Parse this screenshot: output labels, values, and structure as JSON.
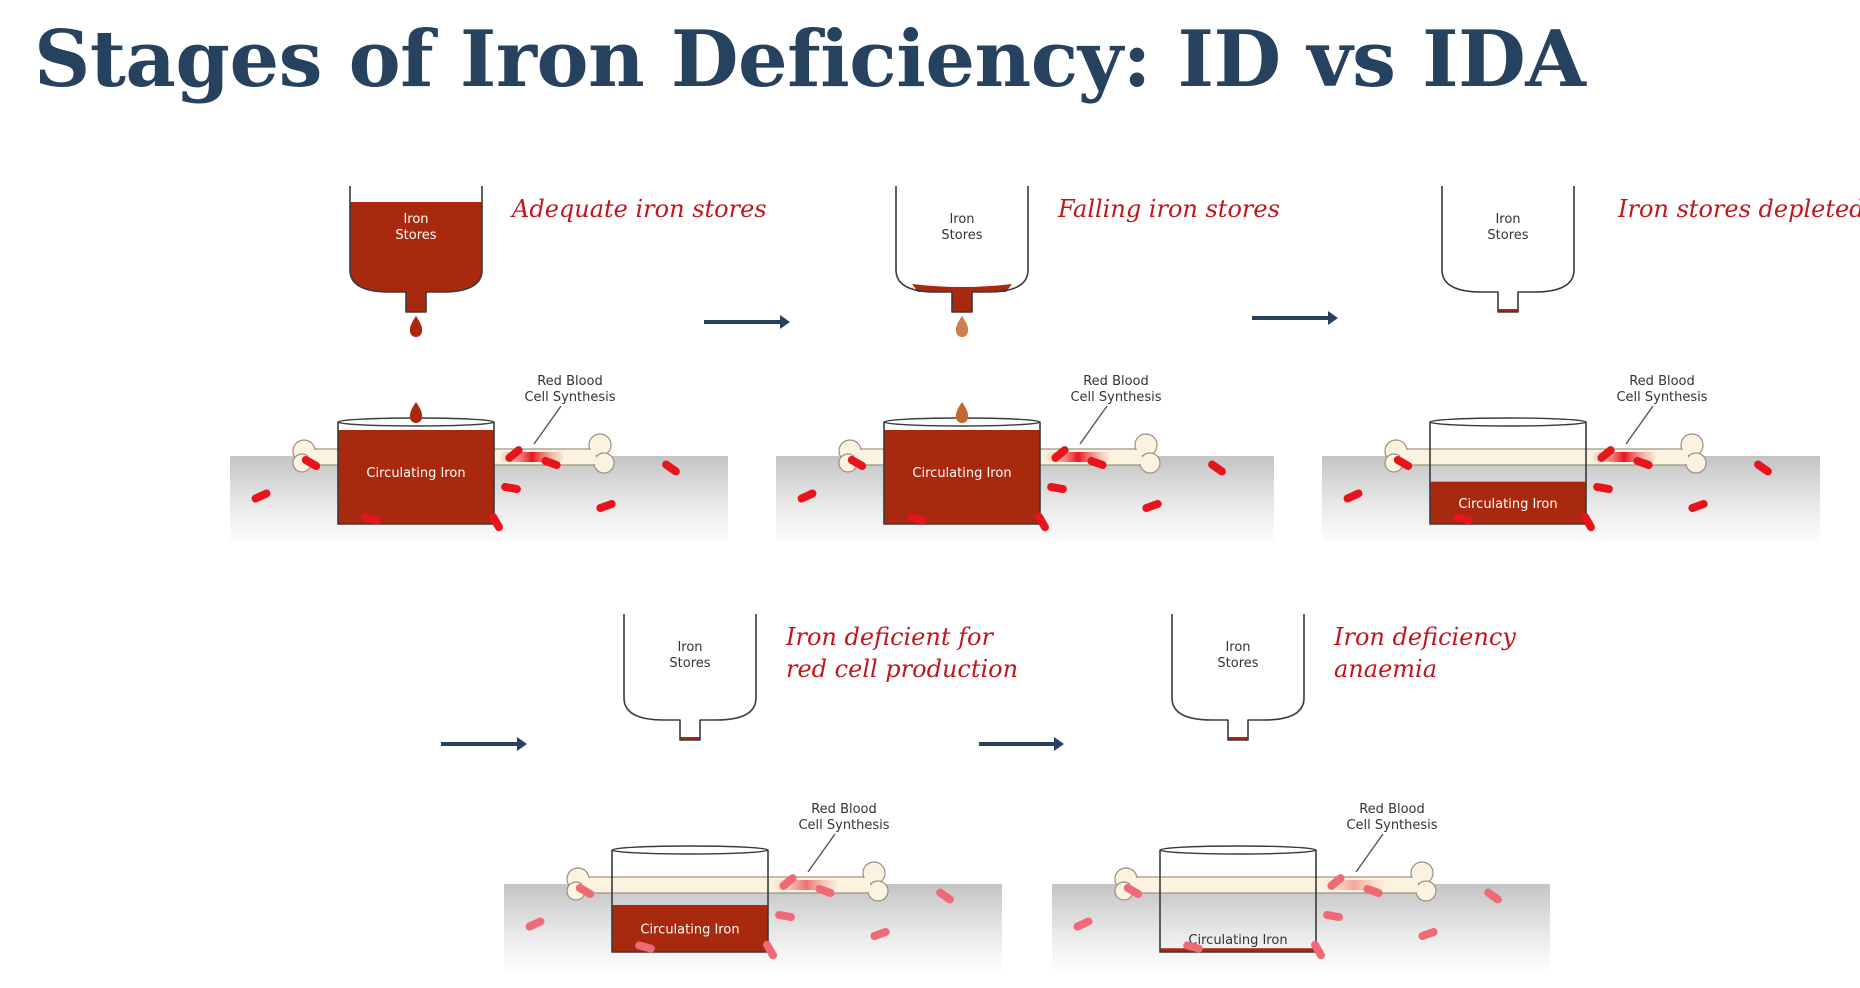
{
  "title": "Stages of Iron Deficiency: ID vs IDA",
  "labels": {
    "stores_line1": "Iron",
    "stores_line2": "Stores",
    "circulating": "Circulating Iron",
    "rbc_line1": "Red Blood",
    "rbc_line2": "Cell Synthesis"
  },
  "stages": [
    {
      "caption_lines": [
        "Adequate iron stores"
      ],
      "store_level": 1.0,
      "circulating_level": 1.0,
      "marrow_activity": 1.0
    },
    {
      "caption_lines": [
        "Falling iron stores"
      ],
      "store_level": 0.08,
      "circulating_level": 1.0,
      "marrow_activity": 1.0
    },
    {
      "caption_lines": [
        "Iron stores depleted"
      ],
      "store_level": 0.0,
      "circulating_level": 0.45,
      "marrow_activity": 1.0
    },
    {
      "caption_lines": [
        "Iron deficient for",
        "red cell production"
      ],
      "store_level": 0.0,
      "circulating_level": 0.5,
      "marrow_activity": 0.6
    },
    {
      "caption_lines": [
        "Iron deficiency",
        "anaemia"
      ],
      "store_level": 0.0,
      "circulating_level": 0.04,
      "marrow_activity": 0.35
    }
  ],
  "colors": {
    "title": "#26425f",
    "iron": "#a8290e",
    "caption": "#c0161c",
    "arrow": "#26425f",
    "rbc": "#e8141c",
    "rbc_pale": "#f06a76",
    "bone": "#fbf3e0",
    "outline": "#3a3a3a"
  },
  "icons": [
    "right-arrow-icon",
    "blood-drop-icon",
    "red-blood-cell-icon",
    "bone-icon"
  ]
}
